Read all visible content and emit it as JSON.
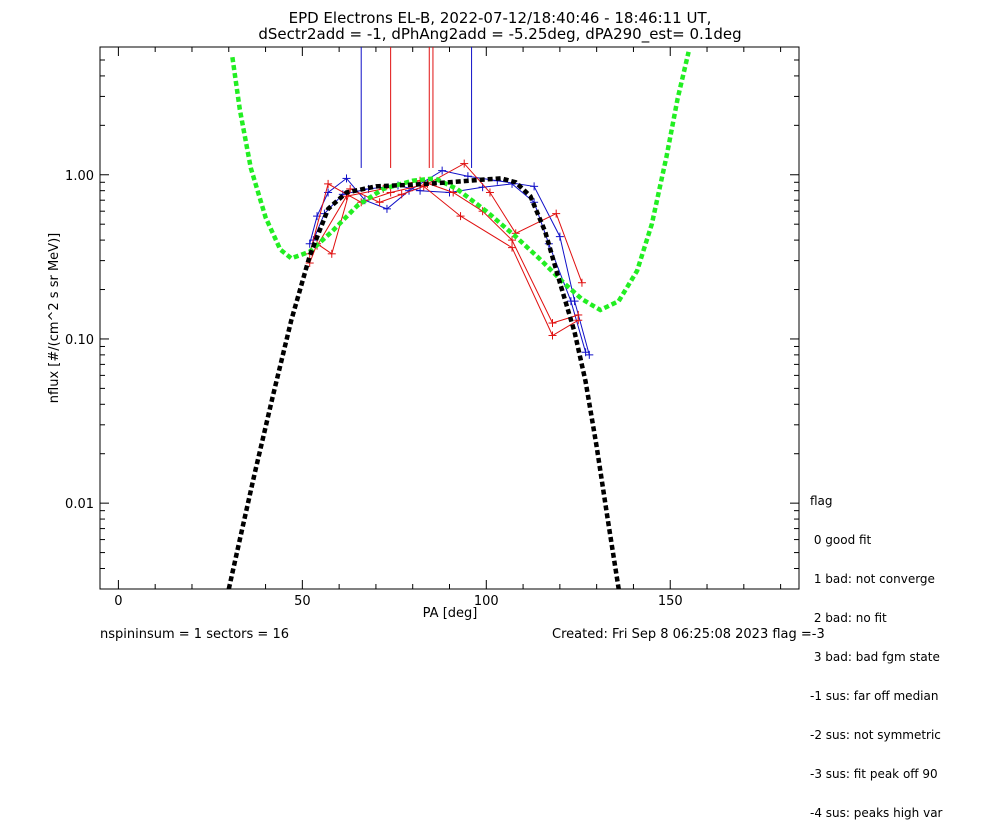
{
  "title": {
    "line1": "EPD Electrons EL-B, 2022-07-12/18:40:46 - 18:46:11 UT,",
    "line2": "dSectr2add = -1, dPhAng2add = -5.25deg, dPA290_est=   0.1deg"
  },
  "footer": {
    "left": "nspininsum =  1  sectors = 16",
    "right": "Created: Fri Sep  8 06:25:08 2023   flag =-3"
  },
  "flag_legend": {
    "heading": "flag",
    "items": [
      " 0 good fit",
      " 1 bad: not converge",
      " 2 bad: no fit",
      " 3 bad: bad fgm state",
      "-1 sus: far off median",
      "-2 sus: not symmetric",
      "-3 sus: fit peak off 90",
      "-4 sus: peaks high var"
    ]
  },
  "colors": {
    "blue": "#1010c8",
    "red": "#e01010",
    "green": "#22ee22",
    "black": "#000000"
  },
  "chart_data": {
    "type": "line",
    "xlabel": "PA [deg]",
    "ylabel": "nflux [#/(cm^2 s sr MeV)]",
    "xlim": [
      -5,
      185
    ],
    "ylim": [
      0.003,
      6.0
    ],
    "yscale": "log",
    "xticks": [
      0,
      50,
      100,
      150
    ],
    "xtick_labels": [
      "0",
      "50",
      "100",
      "150"
    ],
    "yticks": [
      0.01,
      0.1,
      1.0
    ],
    "ytick_labels": [
      "0.01",
      "0.10",
      "1.00"
    ],
    "vertical_lines": [
      {
        "color": "blue",
        "x": 66,
        "y_from": 1.1,
        "y_to": 6.0
      },
      {
        "color": "red",
        "x": 74,
        "y_from": 1.1,
        "y_to": 6.0
      },
      {
        "color": "red",
        "x": 84.5,
        "y_from": 1.1,
        "y_to": 6.0
      },
      {
        "color": "red",
        "x": 85.5,
        "y_from": 1.1,
        "y_to": 6.0
      },
      {
        "color": "blue",
        "x": 96,
        "y_from": 1.1,
        "y_to": 6.0
      }
    ],
    "series": [
      {
        "color": "blue",
        "points": [
          [
            52,
            0.38
          ],
          [
            54,
            0.56
          ],
          [
            57,
            0.78
          ],
          [
            62,
            0.95
          ],
          [
            67,
            0.7
          ],
          [
            73,
            0.62
          ],
          [
            79,
            0.8
          ],
          [
            88,
            1.06
          ],
          [
            95,
            0.98
          ],
          [
            103,
            0.92
          ],
          [
            113,
            0.85
          ],
          [
            120,
            0.42
          ],
          [
            124,
            0.17
          ],
          [
            128,
            0.08
          ]
        ]
      },
      {
        "color": "blue",
        "points": [
          [
            53,
            0.4
          ],
          [
            56,
            0.58
          ],
          [
            61,
            0.76
          ],
          [
            68,
            0.82
          ],
          [
            76,
            0.86
          ],
          [
            82,
            0.8
          ],
          [
            90,
            0.78
          ],
          [
            99,
            0.84
          ],
          [
            107,
            0.88
          ],
          [
            113,
            0.68
          ],
          [
            117,
            0.38
          ],
          [
            123,
            0.17
          ],
          [
            127,
            0.083
          ]
        ]
      },
      {
        "color": "red",
        "points": [
          [
            52,
            0.29
          ],
          [
            54,
            0.38
          ],
          [
            58,
            0.33
          ],
          [
            63,
            0.82
          ],
          [
            71,
            0.68
          ],
          [
            77,
            0.76
          ],
          [
            83,
            0.85
          ],
          [
            93,
            0.56
          ],
          [
            107,
            0.36
          ],
          [
            118,
            0.105
          ],
          [
            125,
            0.13
          ]
        ]
      },
      {
        "color": "red",
        "points": [
          [
            52,
            0.33
          ],
          [
            57,
            0.88
          ],
          [
            66,
            0.68
          ],
          [
            74,
            0.78
          ],
          [
            84,
            0.88
          ],
          [
            94,
            1.17
          ],
          [
            101,
            0.78
          ],
          [
            108,
            0.44
          ],
          [
            119,
            0.58
          ],
          [
            126,
            0.22
          ]
        ]
      },
      {
        "color": "red",
        "points": [
          [
            54,
            0.37
          ],
          [
            62,
            0.74
          ],
          [
            72,
            0.82
          ],
          [
            82,
            0.92
          ],
          [
            91,
            0.78
          ],
          [
            99,
            0.6
          ],
          [
            107,
            0.4
          ],
          [
            118,
            0.125
          ],
          [
            125,
            0.14
          ]
        ]
      },
      {
        "color": "green",
        "dashed": true,
        "points": [
          [
            31,
            5.2
          ],
          [
            33,
            2.5
          ],
          [
            36,
            1.1
          ],
          [
            40,
            0.55
          ],
          [
            44,
            0.35
          ],
          [
            47,
            0.31
          ],
          [
            52,
            0.34
          ],
          [
            58,
            0.45
          ],
          [
            65,
            0.65
          ],
          [
            72,
            0.82
          ],
          [
            80,
            0.92
          ],
          [
            86,
            0.95
          ],
          [
            92,
            0.82
          ],
          [
            100,
            0.6
          ],
          [
            108,
            0.42
          ],
          [
            115,
            0.3
          ],
          [
            121,
            0.22
          ],
          [
            126,
            0.175
          ],
          [
            131,
            0.15
          ],
          [
            136,
            0.17
          ],
          [
            141,
            0.26
          ],
          [
            145,
            0.5
          ],
          [
            149,
            1.3
          ],
          [
            152,
            2.9
          ],
          [
            155,
            5.6
          ]
        ]
      },
      {
        "color": "black",
        "dashed": true,
        "points": [
          [
            30,
            0.003
          ],
          [
            33,
            0.006
          ],
          [
            37,
            0.015
          ],
          [
            42,
            0.045
          ],
          [
            47,
            0.13
          ],
          [
            52,
            0.32
          ],
          [
            57,
            0.62
          ],
          [
            62,
            0.78
          ],
          [
            70,
            0.85
          ],
          [
            80,
            0.87
          ],
          [
            90,
            0.9
          ],
          [
            98,
            0.93
          ],
          [
            104,
            0.95
          ],
          [
            108,
            0.9
          ],
          [
            112,
            0.74
          ],
          [
            116,
            0.45
          ],
          [
            120,
            0.22
          ],
          [
            124,
            0.11
          ],
          [
            127,
            0.055
          ],
          [
            130,
            0.022
          ],
          [
            133,
            0.008
          ],
          [
            136,
            0.003
          ]
        ]
      }
    ]
  }
}
